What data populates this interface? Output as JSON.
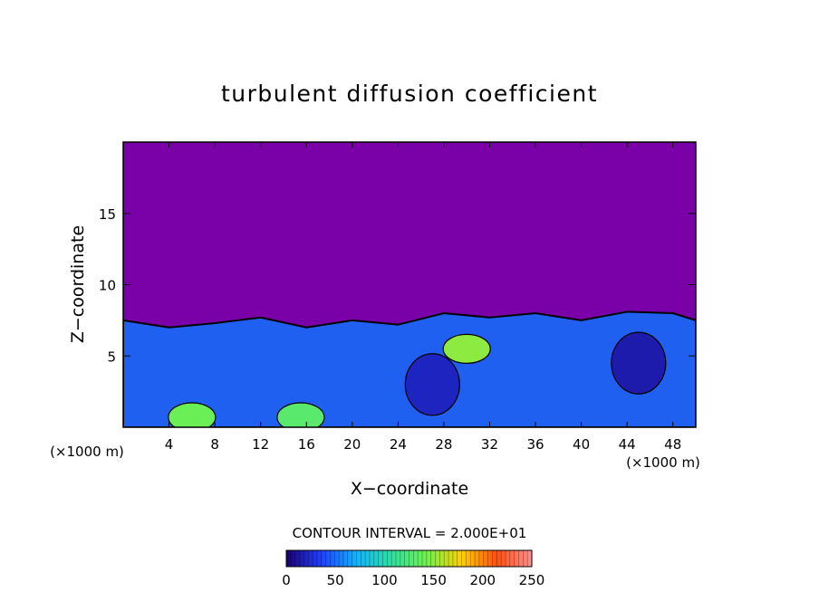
{
  "chart_data": {
    "type": "heatmap",
    "title": "turbulent diffusion coefficient",
    "xlabel": "X−coordinate",
    "ylabel": "Z−coordinate",
    "x_unit_left": "(×1000 m)",
    "x_unit_right": "(×1000 m)",
    "xlim": [
      0,
      50
    ],
    "ylim": [
      0,
      20
    ],
    "x_ticks": [
      4,
      8,
      12,
      16,
      20,
      24,
      28,
      32,
      36,
      40,
      44,
      48
    ],
    "x_tick_labels": [
      "4",
      "8",
      "12",
      "16",
      "20",
      "24",
      "28",
      "32",
      "36",
      "40",
      "44",
      "48"
    ],
    "y_ticks": [
      5,
      10,
      15
    ],
    "y_tick_labels": [
      "5",
      "10",
      "15"
    ],
    "grid": false,
    "contour_interval_label": "CONTOUR INTERVAL = 2.000E+01",
    "colorbar": {
      "range": [
        0,
        250
      ],
      "ticks": [
        0,
        50,
        100,
        150,
        200,
        250
      ],
      "tick_labels": [
        "0",
        "50",
        "100",
        "150",
        "200",
        "250"
      ],
      "colors": [
        "#1a0070",
        "#2040ff",
        "#10b4ff",
        "#30e0a0",
        "#70f050",
        "#ffd000",
        "#ff5010",
        "#ff9090"
      ]
    },
    "background_value": 0,
    "background_color": "#7a00a8",
    "turbulent_layer_top_km": [
      [
        0,
        7.5
      ],
      [
        4,
        7.0
      ],
      [
        8,
        7.3
      ],
      [
        12,
        7.7
      ],
      [
        16,
        7.0
      ],
      [
        20,
        7.5
      ],
      [
        24,
        7.2
      ],
      [
        28,
        8.0
      ],
      [
        32,
        7.7
      ],
      [
        36,
        8.0
      ],
      [
        40,
        7.5
      ],
      [
        44,
        8.1
      ],
      [
        48,
        8.0
      ],
      [
        50,
        7.5
      ]
    ],
    "features": [
      {
        "label": "high-value core near surface",
        "x_km": 6,
        "z_km": 0.7,
        "value": 140
      },
      {
        "label": "high-value core near surface",
        "x_km": 15.5,
        "z_km": 0.7,
        "value": 130
      },
      {
        "label": "elevated streak",
        "x_km": 30,
        "z_km": 5.5,
        "value": 150
      },
      {
        "label": "low-value eddy",
        "x_km": 27,
        "z_km": 3,
        "value": 20
      },
      {
        "label": "low-value eddy",
        "x_km": 45,
        "z_km": 4.5,
        "value": 15
      }
    ]
  }
}
